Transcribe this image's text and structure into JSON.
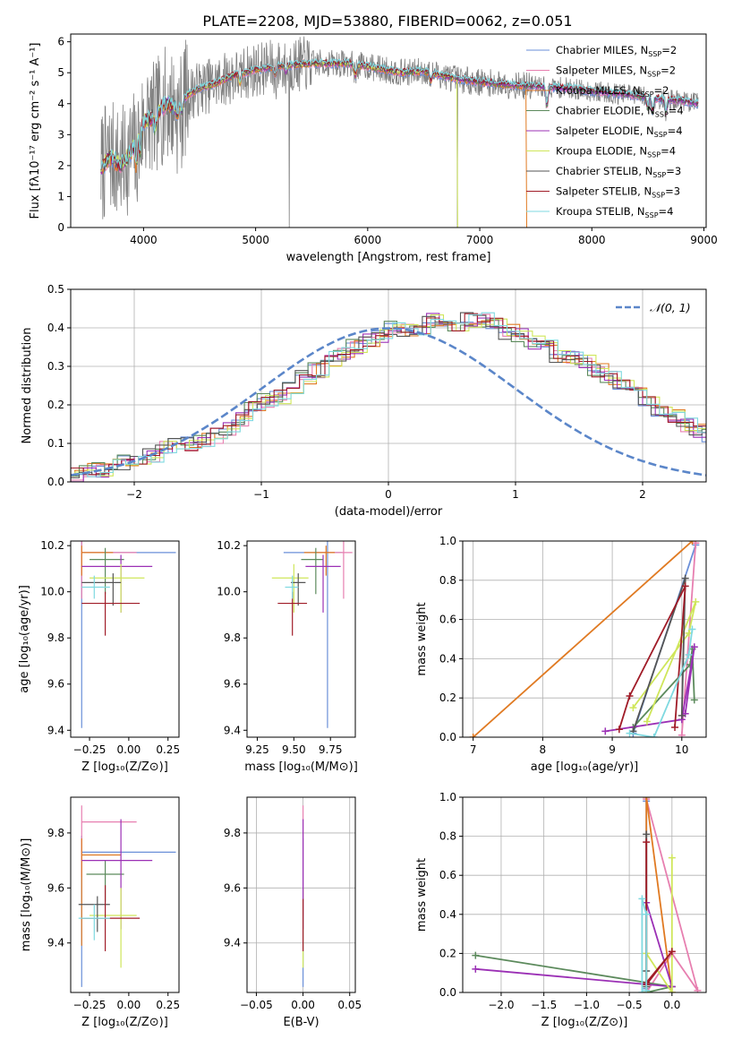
{
  "figure_title": "PLATE=2208, MJD=53880, FIBERID=0062, z=0.051",
  "colors": {
    "Chabrier MILES": "#6a8fd8",
    "Salpeter MILES": "#e77fb0",
    "Kroupa MILES": "#e07a22",
    "Chabrier ELODIE": "#5c8a5c",
    "Salpeter ELODIE": "#9b30b5",
    "Kroupa ELODIE": "#cfe65a",
    "Chabrier STELIB": "#555555",
    "Salpeter STELIB": "#a01c28",
    "Kroupa STELIB": "#7fd9e0",
    "data": "#808080",
    "grid": "#b0b0b0",
    "gauss": "#5b86c9"
  },
  "chart_data": [
    {
      "id": "spectrum",
      "type": "line",
      "xlabel": "wavelength [Angstrom, rest frame]",
      "ylabel": "Flux [fλ10⁻¹⁷ erg cm⁻² s⁻¹ A⁻¹]",
      "xlim": [
        3350,
        9020
      ],
      "ylim": [
        0,
        6.25
      ],
      "xticks": [
        4000,
        5000,
        6000,
        7000,
        8000,
        9000
      ],
      "yticks": [
        0,
        1,
        2,
        3,
        4,
        5,
        6
      ],
      "grid": false,
      "legend_position": "top-right",
      "legend": [
        {
          "name": "Chabrier MILES",
          "nssp": "2"
        },
        {
          "name": "Salpeter MILES",
          "nssp": "2"
        },
        {
          "name": "Kroupa MILES",
          "nssp": "2"
        },
        {
          "name": "Chabrier ELODIE",
          "nssp": "4"
        },
        {
          "name": "Salpeter ELODIE",
          "nssp": "4"
        },
        {
          "name": "Kroupa ELODIE",
          "nssp": "4"
        },
        {
          "name": "Chabrier STELIB",
          "nssp": "3"
        },
        {
          "name": "Salpeter STELIB",
          "nssp": "3"
        },
        {
          "name": "Kroupa STELIB",
          "nssp": "4"
        }
      ],
      "data_range": [
        3620,
        8950
      ],
      "continuum_x": [
        3620,
        3700,
        3800,
        3900,
        3950,
        4000,
        4100,
        4200,
        4300,
        4400,
        4500,
        4600,
        4800,
        5000,
        5200,
        5500,
        5800,
        6000,
        6300,
        6500,
        6800,
        7000,
        7300,
        7500,
        7800,
        8000,
        8300,
        8600,
        8800,
        8950
      ],
      "continuum_y": [
        1.9,
        2.3,
        2.0,
        2.5,
        3.0,
        3.4,
        3.6,
        4.0,
        3.9,
        4.3,
        4.5,
        4.6,
        4.9,
        5.1,
        5.2,
        5.3,
        5.3,
        5.2,
        5.0,
        5.05,
        4.8,
        4.7,
        4.6,
        4.55,
        4.5,
        4.4,
        4.3,
        4.15,
        4.1,
        4.0
      ],
      "model_drops": {
        "Kroupa MILES": 7420,
        "Kroupa ELODIE": 6800
      }
    },
    {
      "id": "residuals",
      "type": "histogram",
      "xlabel": "(data-model)/error",
      "ylabel": "Normed distribution",
      "xlim": [
        -2.5,
        2.5
      ],
      "ylim": [
        0,
        0.5
      ],
      "xticks": [
        -2,
        -1,
        0,
        1,
        2
      ],
      "yticks": [
        0.0,
        0.1,
        0.2,
        0.3,
        0.4,
        0.5
      ],
      "grid": true,
      "legend_label": "𝒩(0, 1)",
      "legend_position": "top-right",
      "bin_width": 0.1,
      "hist_values": [
        0.02,
        0.02,
        0.03,
        0.03,
        0.04,
        0.05,
        0.06,
        0.07,
        0.09,
        0.1,
        0.1,
        0.11,
        0.12,
        0.14,
        0.16,
        0.19,
        0.21,
        0.22,
        0.24,
        0.27,
        0.29,
        0.32,
        0.33,
        0.35,
        0.37,
        0.38,
        0.4,
        0.39,
        0.39,
        0.42,
        0.4,
        0.41,
        0.42,
        0.42,
        0.41,
        0.39,
        0.38,
        0.36,
        0.35,
        0.33,
        0.32,
        0.31,
        0.29,
        0.27,
        0.25,
        0.23,
        0.21,
        0.19,
        0.17,
        0.15,
        0.13,
        0.12,
        0.1,
        0.09,
        0.08,
        0.07,
        0.06,
        0.05,
        0.04,
        0.04,
        0.03,
        0.03,
        0.03,
        0.02,
        0.02,
        0.02
      ]
    },
    {
      "id": "age_vs_Z",
      "type": "errorbar",
      "xlabel": "Z [log₁₀(Z/Z⊙)]",
      "ylabel": "age  [log₁₀(age/yr)]",
      "xlim": [
        -0.37,
        0.32
      ],
      "ylim": [
        9.37,
        10.22
      ],
      "xticks": [
        -0.25,
        0.0,
        0.25
      ],
      "xticklabels": [
        "−0.25",
        "0.00",
        "0.25"
      ],
      "yticks": [
        9.4,
        9.6,
        9.8,
        10.0,
        10.2
      ],
      "grid": false,
      "points": [
        {
          "name": "Chabrier MILES",
          "x": -0.3,
          "y": 10.17,
          "xerr": [
            0.0,
            0.6
          ],
          "yerr": [
            0.76,
            0.05
          ]
        },
        {
          "name": "Salpeter MILES",
          "x": -0.3,
          "y": 10.17,
          "xerr": [
            0.0,
            0.35
          ],
          "yerr": [
            0.2,
            0.05
          ]
        },
        {
          "name": "Kroupa MILES",
          "x": -0.3,
          "y": 10.17,
          "xerr": [
            0.0,
            0.2
          ],
          "yerr": [
            0.1,
            0.03
          ]
        },
        {
          "name": "Chabrier ELODIE",
          "x": -0.15,
          "y": 10.14,
          "xerr": [
            0.1,
            0.12
          ],
          "yerr": [
            0.15,
            0.05
          ]
        },
        {
          "name": "Salpeter ELODIE",
          "x": -0.05,
          "y": 10.11,
          "xerr": [
            0.25,
            0.2
          ],
          "yerr": [
            0.2,
            0.05
          ]
        },
        {
          "name": "Kroupa ELODIE",
          "x": -0.05,
          "y": 10.06,
          "xerr": [
            0.2,
            0.15
          ],
          "yerr": [
            0.15,
            0.06
          ]
        },
        {
          "name": "Chabrier STELIB",
          "x": -0.1,
          "y": 10.04,
          "xerr": [
            0.2,
            0.05
          ],
          "yerr": [
            0.1,
            0.04
          ]
        },
        {
          "name": "Salpeter STELIB",
          "x": -0.15,
          "y": 9.95,
          "xerr": [
            0.15,
            0.22
          ],
          "yerr": [
            0.14,
            0.05
          ]
        },
        {
          "name": "Kroupa STELIB",
          "x": -0.22,
          "y": 10.02,
          "xerr": [
            0.08,
            0.1
          ],
          "yerr": [
            0.05,
            0.05
          ]
        }
      ]
    },
    {
      "id": "age_vs_mass",
      "type": "errorbar",
      "xlabel": "mass [log₁₀(M/M⊙)]",
      "ylabel": "",
      "xlim": [
        9.18,
        9.92
      ],
      "ylim": [
        9.37,
        10.22
      ],
      "xticks": [
        9.25,
        9.5,
        9.75
      ],
      "xticklabels": [
        "9.25",
        "9.50",
        "9.75"
      ],
      "yticks": [
        9.4,
        9.6,
        9.8,
        10.0,
        10.2
      ],
      "grid": false,
      "points": [
        {
          "name": "Chabrier MILES",
          "x": 9.73,
          "y": 10.17,
          "xerr": [
            0.3,
            0.1
          ],
          "yerr": [
            0.76,
            0.05
          ]
        },
        {
          "name": "Salpeter MILES",
          "x": 9.84,
          "y": 10.17,
          "xerr": [
            0.2,
            0.06
          ],
          "yerr": [
            0.2,
            0.05
          ]
        },
        {
          "name": "Kroupa MILES",
          "x": 9.72,
          "y": 10.17,
          "xerr": [
            0.15,
            0.06
          ],
          "yerr": [
            0.1,
            0.03
          ]
        },
        {
          "name": "Chabrier ELODIE",
          "x": 9.65,
          "y": 10.14,
          "xerr": [
            0.1,
            0.05
          ],
          "yerr": [
            0.15,
            0.05
          ]
        },
        {
          "name": "Salpeter ELODIE",
          "x": 9.7,
          "y": 10.11,
          "xerr": [
            0.12,
            0.12
          ],
          "yerr": [
            0.2,
            0.05
          ]
        },
        {
          "name": "Kroupa ELODIE",
          "x": 9.5,
          "y": 10.06,
          "xerr": [
            0.15,
            0.1
          ],
          "yerr": [
            0.15,
            0.06
          ]
        },
        {
          "name": "Chabrier STELIB",
          "x": 9.53,
          "y": 10.04,
          "xerr": [
            0.05,
            0.05
          ],
          "yerr": [
            0.1,
            0.04
          ]
        },
        {
          "name": "Salpeter STELIB",
          "x": 9.49,
          "y": 9.95,
          "xerr": [
            0.1,
            0.1
          ],
          "yerr": [
            0.14,
            0.05
          ]
        },
        {
          "name": "Kroupa STELIB",
          "x": 9.49,
          "y": 10.02,
          "xerr": [
            0.05,
            0.04
          ],
          "yerr": [
            0.05,
            0.05
          ]
        }
      ]
    },
    {
      "id": "weight_vs_age",
      "type": "line",
      "xlabel": "age  [log₁₀(age/yr)]",
      "ylabel": "mass weight",
      "xlim": [
        6.85,
        10.35
      ],
      "ylim": [
        0,
        1.0
      ],
      "xticks": [
        7,
        8,
        9,
        10
      ],
      "yticks": [
        0.0,
        0.2,
        0.4,
        0.6,
        0.8,
        1.0
      ],
      "grid": true,
      "series": [
        {
          "name": "Chabrier MILES",
          "x": [
            9.3,
            10.2
          ],
          "y": [
            0.02,
            0.98
          ]
        },
        {
          "name": "Salpeter MILES",
          "x": [
            10.0,
            10.2
          ],
          "y": [
            0.01,
            0.99
          ]
        },
        {
          "name": "Kroupa MILES",
          "x": [
            7.0,
            10.15
          ],
          "y": [
            0.0,
            1.0
          ]
        },
        {
          "name": "Chabrier ELODIE",
          "x": [
            9.3,
            10.12,
            10.15,
            10.18
          ],
          "y": [
            0.05,
            0.37,
            0.45,
            0.19
          ]
        },
        {
          "name": "Salpeter ELODIE",
          "x": [
            8.9,
            10.0,
            10.18,
            10.05
          ],
          "y": [
            0.03,
            0.09,
            0.46,
            0.12
          ]
        },
        {
          "name": "Kroupa ELODIE",
          "x": [
            9.3,
            10.1,
            10.2,
            9.5
          ],
          "y": [
            0.15,
            0.53,
            0.69,
            0.08
          ]
        },
        {
          "name": "Chabrier STELIB",
          "x": [
            9.3,
            10.05,
            10.0
          ],
          "y": [
            0.03,
            0.81,
            0.11
          ]
        },
        {
          "name": "Salpeter STELIB",
          "x": [
            9.1,
            9.25,
            10.05,
            9.9
          ],
          "y": [
            0.04,
            0.21,
            0.77,
            0.05
          ]
        },
        {
          "name": "Kroupa STELIB",
          "x": [
            9.25,
            9.6,
            10.1,
            10.15
          ],
          "y": [
            0.02,
            0.0,
            0.42,
            0.55
          ]
        }
      ]
    },
    {
      "id": "mass_vs_Z",
      "type": "errorbar",
      "xlabel": "Z [log₁₀(Z/Z⊙)]",
      "ylabel": "mass [log₁₀(M/M⊙)]",
      "xlim": [
        -0.37,
        0.32
      ],
      "ylim": [
        9.22,
        9.93
      ],
      "xticks": [
        -0.25,
        0.0,
        0.25
      ],
      "xticklabels": [
        "−0.25",
        "0.00",
        "0.25"
      ],
      "yticks": [
        9.4,
        9.6,
        9.8
      ],
      "grid": false,
      "points": [
        {
          "name": "Chabrier MILES",
          "x": -0.3,
          "y": 9.73,
          "xerr": [
            0.0,
            0.6
          ],
          "yerr": [
            0.49,
            0.06
          ]
        },
        {
          "name": "Salpeter MILES",
          "x": -0.3,
          "y": 9.84,
          "xerr": [
            0.0,
            0.35
          ],
          "yerr": [
            0.2,
            0.06
          ]
        },
        {
          "name": "Kroupa MILES",
          "x": -0.3,
          "y": 9.72,
          "xerr": [
            0.0,
            0.25
          ],
          "yerr": [
            0.33,
            0.06
          ]
        },
        {
          "name": "Chabrier ELODIE",
          "x": -0.15,
          "y": 9.65,
          "xerr": [
            0.12,
            0.12
          ],
          "yerr": [
            0.1,
            0.05
          ]
        },
        {
          "name": "Salpeter ELODIE",
          "x": -0.05,
          "y": 9.7,
          "xerr": [
            0.25,
            0.2
          ],
          "yerr": [
            0.25,
            0.15
          ]
        },
        {
          "name": "Kroupa ELODIE",
          "x": -0.05,
          "y": 9.5,
          "xerr": [
            0.2,
            0.1
          ],
          "yerr": [
            0.19,
            0.1
          ]
        },
        {
          "name": "Chabrier STELIB",
          "x": -0.2,
          "y": 9.54,
          "xerr": [
            0.12,
            0.08
          ],
          "yerr": [
            0.1,
            0.03
          ]
        },
        {
          "name": "Salpeter STELIB",
          "x": -0.15,
          "y": 9.49,
          "xerr": [
            0.15,
            0.22
          ],
          "yerr": [
            0.12,
            0.12
          ]
        },
        {
          "name": "Kroupa STELIB",
          "x": -0.22,
          "y": 9.49,
          "xerr": [
            0.1,
            0.1
          ],
          "yerr": [
            0.08,
            0.05
          ]
        }
      ]
    },
    {
      "id": "mass_vs_EBV",
      "type": "errorbar",
      "xlabel": "E(B-V)",
      "ylabel": "",
      "xlim": [
        -0.06,
        0.056
      ],
      "ylim": [
        9.22,
        9.93
      ],
      "xticks": [
        -0.05,
        0.0,
        0.05
      ],
      "xticklabels": [
        "−0.05",
        "0.00",
        "0.05"
      ],
      "yticks": [
        9.4,
        9.6,
        9.8
      ],
      "grid": true,
      "points": [
        {
          "name": "Chabrier MILES",
          "x": 0.0,
          "y": 9.6,
          "xerr": [
            0,
            0
          ],
          "yerr": [
            0.36,
            0.18
          ]
        },
        {
          "name": "Salpeter MILES",
          "x": 0.0,
          "y": 9.7,
          "xerr": [
            0,
            0
          ],
          "yerr": [
            0.2,
            0.2
          ]
        },
        {
          "name": "Kroupa ELODIE",
          "x": 0.0,
          "y": 9.5,
          "xerr": [
            0,
            0
          ],
          "yerr": [
            0.19,
            0.1
          ]
        },
        {
          "name": "Salpeter ELODIE",
          "x": 0.0,
          "y": 9.7,
          "xerr": [
            0,
            0
          ],
          "yerr": [
            0.25,
            0.15
          ]
        },
        {
          "name": "Salpeter STELIB",
          "x": 0.0,
          "y": 9.49,
          "xerr": [
            0,
            0
          ],
          "yerr": [
            0.12,
            0.07
          ]
        }
      ]
    },
    {
      "id": "weight_vs_Z",
      "type": "line",
      "xlabel": "Z [log₁₀(Z/Z⊙)]",
      "ylabel": "mass weight",
      "xlim": [
        -2.45,
        0.4
      ],
      "ylim": [
        0,
        1.0
      ],
      "xticks": [
        -2.0,
        -1.5,
        -1.0,
        -0.5,
        0.0
      ],
      "xticklabels": [
        "−2.0",
        "−1.5",
        "−1.0",
        "−0.5",
        "0.0"
      ],
      "yticks": [
        0.0,
        0.2,
        0.4,
        0.6,
        0.8,
        1.0
      ],
      "grid": true,
      "series": [
        {
          "name": "Chabrier MILES",
          "x": [
            -0.3,
            -0.3
          ],
          "y": [
            0.02,
            0.98
          ]
        },
        {
          "name": "Salpeter MILES",
          "x": [
            -0.3,
            0.3,
            0.0,
            -0.3
          ],
          "y": [
            0.99,
            0.01,
            0.2,
            0.0
          ]
        },
        {
          "name": "Kroupa MILES",
          "x": [
            -0.3,
            -0.3,
            0.0
          ],
          "y": [
            0.0,
            1.0,
            0.0
          ]
        },
        {
          "name": "Chabrier ELODIE",
          "x": [
            -2.3,
            0.0,
            -0.3
          ],
          "y": [
            0.19,
            0.03,
            0.0
          ]
        },
        {
          "name": "Salpeter ELODIE",
          "x": [
            -2.3,
            0.0,
            -0.3
          ],
          "y": [
            0.12,
            0.03,
            0.46
          ]
        },
        {
          "name": "Kroupa ELODIE",
          "x": [
            0.0,
            0.0,
            -0.3,
            -0.3
          ],
          "y": [
            0.69,
            0.0,
            0.2,
            0.0
          ]
        },
        {
          "name": "Chabrier STELIB",
          "x": [
            -0.3,
            -0.3,
            -0.3
          ],
          "y": [
            0.81,
            0.11,
            0.03
          ]
        },
        {
          "name": "Salpeter STELIB",
          "x": [
            -0.3,
            -0.3,
            0.0,
            -0.3
          ],
          "y": [
            0.77,
            0.05,
            0.21,
            0.04
          ]
        },
        {
          "name": "Kroupa STELIB",
          "x": [
            -0.35,
            -0.35,
            -0.3,
            -0.3
          ],
          "y": [
            0.0,
            0.48,
            0.4,
            0.01
          ]
        }
      ]
    }
  ]
}
